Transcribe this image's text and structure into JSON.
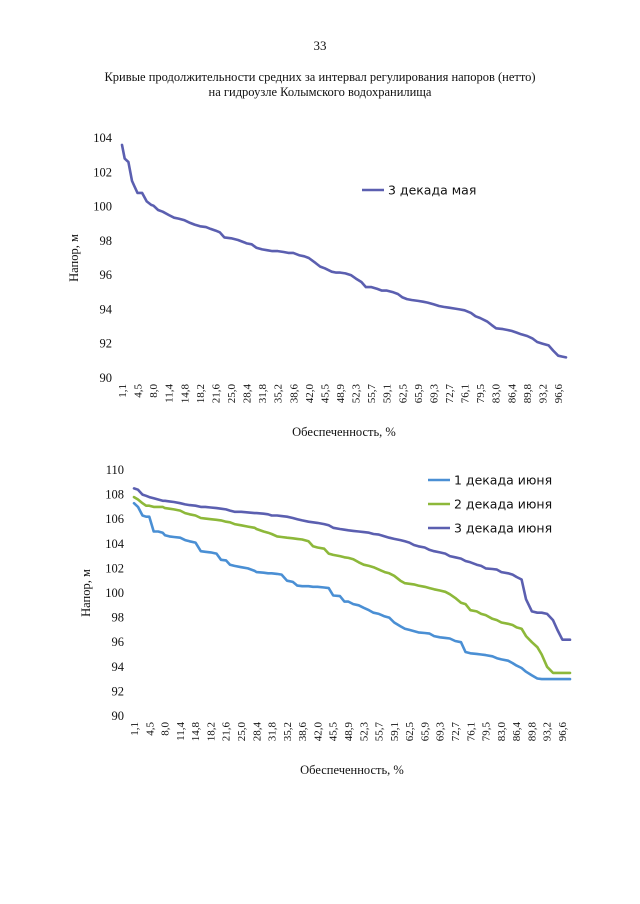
{
  "page_number": "33",
  "title_line1": "Кривые продолжительности средних за интервал регулирования напоров (нетто)",
  "title_line2": "на гидроузле Колымского водохранилища",
  "x_ticks": [
    "1,1",
    "4,5",
    "8,0",
    "11,4",
    "14,8",
    "18,2",
    "21,6",
    "25,0",
    "28,4",
    "31,8",
    "35,2",
    "38,6",
    "42,0",
    "45,5",
    "48,9",
    "52,3",
    "55,7",
    "59,1",
    "62,5",
    "65,9",
    "69,3",
    "72,7",
    "76,1",
    "79,5",
    "83,0",
    "86,4",
    "89,8",
    "93,2",
    "96,6"
  ],
  "chart_data": [
    {
      "type": "line",
      "title": "",
      "xlabel": "Обеспеченность, %",
      "ylabel": "Напор, м",
      "ylim": [
        90,
        104
      ],
      "yticks": [
        90,
        92,
        94,
        96,
        98,
        100,
        102,
        104
      ],
      "x_range": [
        1.1,
        98.3
      ],
      "legend_position": "top-right",
      "series": [
        {
          "name": "3 декада мая",
          "color": "#5b5fb0",
          "x": [
            1.1,
            1.7,
            2.5,
            3.3,
            3.8,
            4.5,
            5.5,
            6.5,
            7.5,
            8.0,
            9.0,
            10.0,
            11.4,
            12.5,
            13.5,
            14.8,
            16.0,
            17.0,
            18.2,
            19.5,
            20.5,
            21.6,
            22.5,
            23.5,
            25.0,
            26.5,
            28.0,
            28.4,
            29.5,
            30.5,
            31.8,
            33.0,
            34.0,
            35.2,
            36.5,
            37.5,
            38.6,
            40.0,
            41.0,
            42.0,
            43.5,
            44.5,
            45.5,
            47.0,
            48.0,
            48.9,
            50.0,
            51.2,
            52.3,
            53.5,
            54.5,
            55.7,
            57.0,
            58.0,
            59.1,
            60.5,
            61.5,
            62.5,
            63.5,
            64.5,
            65.9,
            67.0,
            68.0,
            69.3,
            70.5,
            71.5,
            72.7,
            74.0,
            75.0,
            76.1,
            77.5,
            78.5,
            79.5,
            81.0,
            82.0,
            83.0,
            84.5,
            85.5,
            86.4,
            87.5,
            88.5,
            89.8,
            91.0,
            92.0,
            93.2,
            94.5,
            95.5,
            96.6,
            97.5,
            98.3
          ],
          "values": [
            103.6,
            102.8,
            102.6,
            101.5,
            101.2,
            100.8,
            100.8,
            100.3,
            100.1,
            100.05,
            99.8,
            99.7,
            99.5,
            99.35,
            99.3,
            99.2,
            99.05,
            98.95,
            98.85,
            98.8,
            98.7,
            98.6,
            98.5,
            98.2,
            98.15,
            98.05,
            97.9,
            97.85,
            97.8,
            97.6,
            97.5,
            97.45,
            97.4,
            97.4,
            97.35,
            97.3,
            97.3,
            97.15,
            97.1,
            97.0,
            96.7,
            96.5,
            96.4,
            96.2,
            96.15,
            96.15,
            96.1,
            96.0,
            95.8,
            95.6,
            95.3,
            95.3,
            95.2,
            95.1,
            95.1,
            95.0,
            94.9,
            94.7,
            94.6,
            94.55,
            94.5,
            94.45,
            94.4,
            94.3,
            94.2,
            94.15,
            94.1,
            94.05,
            94.0,
            93.95,
            93.8,
            93.6,
            93.5,
            93.3,
            93.1,
            92.9,
            92.85,
            92.8,
            92.75,
            92.65,
            92.55,
            92.45,
            92.3,
            92.1,
            92.0,
            91.9,
            91.6,
            91.3,
            91.25,
            91.2
          ]
        }
      ]
    },
    {
      "type": "line",
      "title": "",
      "xlabel": "Обеспеченность, %",
      "ylabel": "Напор, м",
      "ylim": [
        90,
        110
      ],
      "yticks": [
        90,
        92,
        94,
        96,
        98,
        100,
        102,
        104,
        106,
        108,
        110
      ],
      "x_range": [
        1.1,
        98.3
      ],
      "legend_position": "top-right",
      "series": [
        {
          "name": "1 декада июня",
          "color": "#4a8fd4",
          "x": [
            1.1,
            2.0,
            3.0,
            3.8,
            4.5,
            5.5,
            6.5,
            7.5,
            8.0,
            9.0,
            10.0,
            11.4,
            12.5,
            13.5,
            14.8,
            16.0,
            17.0,
            18.2,
            19.5,
            20.5,
            21.6,
            22.5,
            23.5,
            25.0,
            26.5,
            28.0,
            28.4,
            30.0,
            31.0,
            31.8,
            33.0,
            34.0,
            35.2,
            36.5,
            37.5,
            38.6,
            40.0,
            41.0,
            42.0,
            43.5,
            44.5,
            45.5,
            47.0,
            48.0,
            48.9,
            50.0,
            51.2,
            52.3,
            53.5,
            54.5,
            55.7,
            57.0,
            58.0,
            59.1,
            60.5,
            61.5,
            62.5,
            63.5,
            64.5,
            65.9,
            67.0,
            68.0,
            69.3,
            70.5,
            71.5,
            72.7,
            74.0,
            75.0,
            76.1,
            77.5,
            78.5,
            79.5,
            81.0,
            82.0,
            83.0,
            84.5,
            85.5,
            86.4,
            87.5,
            88.5,
            89.8,
            91.0,
            92.0,
            93.2,
            94.5,
            95.5,
            96.6,
            97.5,
            98.3
          ],
          "values": [
            107.3,
            107.0,
            106.3,
            106.2,
            106.2,
            105.0,
            105.0,
            104.9,
            104.7,
            104.6,
            104.55,
            104.5,
            104.3,
            104.2,
            104.1,
            103.4,
            103.35,
            103.3,
            103.2,
            102.7,
            102.65,
            102.3,
            102.2,
            102.1,
            102.0,
            101.8,
            101.7,
            101.65,
            101.6,
            101.6,
            101.55,
            101.5,
            101.0,
            100.9,
            100.6,
            100.55,
            100.55,
            100.5,
            100.5,
            100.45,
            100.4,
            99.8,
            99.75,
            99.3,
            99.3,
            99.1,
            99.0,
            98.8,
            98.6,
            98.4,
            98.3,
            98.1,
            98.0,
            97.6,
            97.3,
            97.1,
            97.0,
            96.9,
            96.8,
            96.75,
            96.7,
            96.5,
            96.4,
            96.35,
            96.3,
            96.1,
            96.0,
            95.2,
            95.1,
            95.05,
            95.0,
            94.95,
            94.85,
            94.7,
            94.6,
            94.5,
            94.3,
            94.1,
            93.9,
            93.6,
            93.3,
            93.05,
            93.0,
            93.0,
            93.0,
            93.0,
            93.0,
            93.0,
            93.0
          ]
        },
        {
          "name": "2 декада июня",
          "color": "#8db83a",
          "x": [
            1.1,
            2.0,
            3.0,
            3.8,
            4.5,
            5.5,
            6.5,
            7.5,
            8.0,
            9.0,
            10.0,
            11.4,
            12.5,
            13.5,
            14.8,
            16.0,
            17.0,
            18.2,
            19.5,
            20.5,
            21.6,
            22.5,
            23.5,
            25.0,
            26.5,
            28.0,
            28.4,
            30.0,
            31.0,
            31.8,
            33.0,
            34.0,
            35.2,
            36.5,
            37.5,
            38.6,
            40.0,
            41.0,
            42.0,
            43.5,
            44.5,
            45.5,
            47.0,
            48.0,
            48.9,
            50.0,
            51.2,
            52.3,
            53.5,
            54.5,
            55.7,
            57.0,
            58.0,
            59.1,
            60.5,
            61.5,
            62.5,
            63.5,
            64.5,
            65.9,
            67.0,
            68.0,
            69.3,
            70.5,
            71.5,
            72.7,
            74.0,
            75.0,
            76.1,
            77.5,
            78.5,
            79.5,
            81.0,
            82.0,
            83.0,
            84.5,
            85.5,
            86.4,
            87.5,
            88.5,
            89.8,
            91.0,
            92.0,
            93.2,
            94.5,
            95.5,
            96.6,
            97.5,
            98.3
          ],
          "values": [
            107.8,
            107.6,
            107.3,
            107.1,
            107.1,
            107.0,
            107.0,
            107.0,
            106.9,
            106.85,
            106.8,
            106.7,
            106.5,
            106.4,
            106.3,
            106.1,
            106.05,
            106.0,
            105.95,
            105.9,
            105.8,
            105.75,
            105.6,
            105.5,
            105.4,
            105.3,
            105.2,
            105.0,
            104.9,
            104.8,
            104.6,
            104.55,
            104.5,
            104.45,
            104.4,
            104.35,
            104.2,
            103.8,
            103.7,
            103.6,
            103.2,
            103.1,
            103.0,
            102.9,
            102.85,
            102.75,
            102.5,
            102.3,
            102.2,
            102.1,
            101.9,
            101.7,
            101.6,
            101.4,
            101.0,
            100.8,
            100.75,
            100.7,
            100.6,
            100.5,
            100.4,
            100.3,
            100.2,
            100.1,
            99.9,
            99.6,
            99.2,
            99.1,
            98.6,
            98.5,
            98.3,
            98.2,
            97.9,
            97.8,
            97.6,
            97.5,
            97.4,
            97.2,
            97.1,
            96.5,
            96.0,
            95.6,
            95.0,
            94.0,
            93.5,
            93.5,
            93.5,
            93.5,
            93.5
          ]
        },
        {
          "name": "3 декада июня",
          "color": "#5b5fb0",
          "x": [
            1.1,
            2.0,
            3.0,
            3.8,
            4.5,
            5.5,
            6.5,
            7.5,
            8.0,
            9.0,
            10.0,
            11.4,
            12.5,
            13.5,
            14.8,
            16.0,
            17.0,
            18.2,
            19.5,
            20.5,
            21.6,
            22.5,
            23.5,
            25.0,
            26.5,
            28.0,
            28.4,
            30.0,
            31.0,
            31.8,
            33.0,
            34.0,
            35.2,
            36.5,
            37.5,
            38.6,
            40.0,
            41.0,
            42.0,
            43.5,
            44.5,
            45.5,
            47.0,
            48.0,
            48.9,
            50.0,
            51.2,
            52.3,
            53.5,
            54.5,
            55.7,
            57.0,
            58.0,
            59.1,
            60.5,
            61.5,
            62.5,
            63.5,
            64.5,
            65.9,
            67.0,
            68.0,
            69.3,
            70.5,
            71.5,
            72.7,
            74.0,
            75.0,
            76.1,
            77.5,
            78.5,
            79.5,
            81.0,
            82.0,
            83.0,
            84.5,
            85.5,
            86.4,
            87.5,
            88.5,
            89.8,
            91.0,
            92.0,
            93.2,
            94.5,
            95.5,
            96.6,
            97.5,
            98.3
          ],
          "values": [
            108.5,
            108.4,
            108.0,
            107.9,
            107.8,
            107.7,
            107.6,
            107.5,
            107.5,
            107.45,
            107.4,
            107.3,
            107.2,
            107.15,
            107.1,
            107.0,
            107.0,
            106.95,
            106.9,
            106.85,
            106.8,
            106.7,
            106.6,
            106.6,
            106.55,
            106.5,
            106.5,
            106.45,
            106.4,
            106.3,
            106.3,
            106.25,
            106.2,
            106.1,
            106.0,
            105.9,
            105.8,
            105.75,
            105.7,
            105.6,
            105.5,
            105.3,
            105.2,
            105.15,
            105.1,
            105.05,
            105.0,
            104.95,
            104.9,
            104.8,
            104.75,
            104.6,
            104.5,
            104.4,
            104.3,
            104.2,
            104.1,
            103.9,
            103.8,
            103.7,
            103.5,
            103.4,
            103.3,
            103.2,
            103.0,
            102.9,
            102.8,
            102.6,
            102.5,
            102.3,
            102.2,
            102.0,
            101.95,
            101.9,
            101.7,
            101.6,
            101.5,
            101.3,
            101.1,
            99.5,
            98.5,
            98.4,
            98.4,
            98.3,
            97.8,
            97.0,
            96.2,
            96.2,
            96.2
          ]
        }
      ]
    }
  ]
}
